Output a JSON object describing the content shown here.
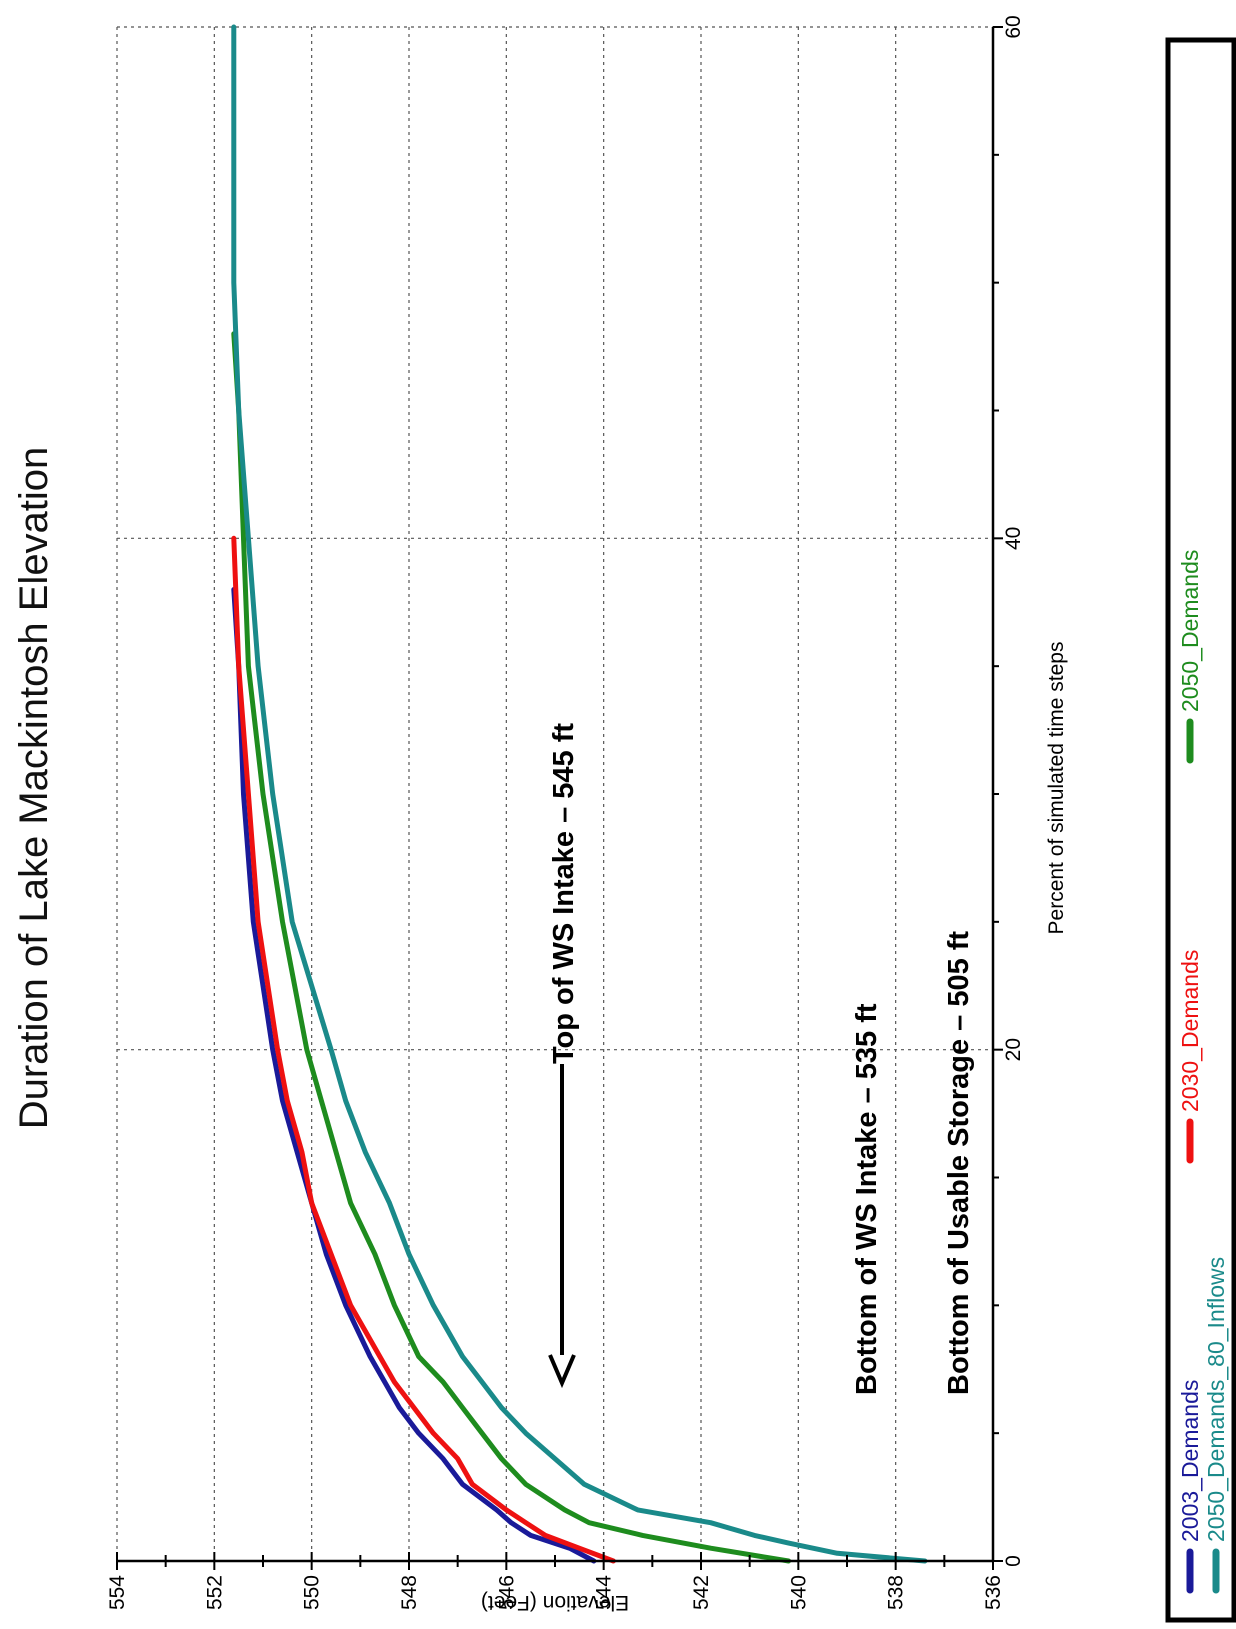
{
  "chart_data": {
    "type": "line",
    "title": "Duration of Lake Mackintosh Elevation",
    "xlabel": "Percent of simulated time steps",
    "ylabel": "Elevation (Feet)",
    "xlim": [
      0,
      60
    ],
    "ylim": [
      536,
      554
    ],
    "x_ticks": [
      "0",
      "20",
      "40",
      "60"
    ],
    "y_ticks": [
      "536",
      "538",
      "540",
      "542",
      "544",
      "546",
      "548",
      "550",
      "552",
      "554"
    ],
    "grid": true,
    "legend_position": "bottom",
    "annotations": [
      "Top of WS Intake – 545 ft",
      "Bottom of WS Intake – 535 ft",
      "Bottom of Usable Storage – 505 ft"
    ],
    "series": [
      {
        "name": "2003_Demands",
        "color": "#1a1a99",
        "x": [
          0,
          0.5,
          1,
          1.5,
          2,
          3,
          4,
          5,
          6,
          7,
          8,
          10,
          12,
          14,
          16,
          18,
          20,
          25,
          30,
          35,
          38
        ],
        "y": [
          544.2,
          544.7,
          545.5,
          545.9,
          546.2,
          546.9,
          547.3,
          547.8,
          548.2,
          548.5,
          548.8,
          549.3,
          549.7,
          550.0,
          550.3,
          550.6,
          550.8,
          551.2,
          551.4,
          551.5,
          551.6
        ]
      },
      {
        "name": "2030_Demands",
        "color": "#ee1111",
        "x": [
          0,
          0.5,
          1,
          1.5,
          2,
          3,
          4,
          5,
          6,
          7,
          8,
          10,
          12,
          14,
          16,
          18,
          20,
          25,
          30,
          35,
          40
        ],
        "y": [
          543.8,
          544.5,
          545.2,
          545.6,
          546.0,
          546.7,
          547.0,
          547.5,
          547.9,
          548.3,
          548.6,
          549.2,
          549.6,
          550.0,
          550.2,
          550.5,
          550.7,
          551.1,
          551.3,
          551.5,
          551.6
        ]
      },
      {
        "name": "2050_Demands",
        "color": "#1e8c1e",
        "x": [
          0,
          0.5,
          1,
          1.5,
          2,
          3,
          4,
          5,
          6,
          7,
          8,
          10,
          12,
          14,
          16,
          18,
          20,
          25,
          30,
          35,
          40,
          45,
          48
        ],
        "y": [
          540.2,
          541.8,
          543.2,
          544.3,
          544.8,
          545.6,
          546.1,
          546.5,
          546.9,
          547.3,
          547.8,
          548.3,
          548.7,
          549.2,
          549.5,
          549.8,
          550.1,
          550.6,
          551.0,
          551.3,
          551.4,
          551.5,
          551.6
        ]
      },
      {
        "name": "2050_Demands_80_Inflows",
        "color": "#1a8a8a",
        "x": [
          0,
          0.3,
          0.7,
          1,
          1.5,
          2,
          3,
          4,
          5,
          6,
          7,
          8,
          10,
          12,
          14,
          16,
          18,
          20,
          25,
          30,
          35,
          40,
          45,
          50,
          55,
          60
        ],
        "y": [
          537.4,
          539.2,
          540.2,
          540.9,
          541.8,
          543.3,
          544.4,
          545.0,
          545.6,
          546.1,
          546.5,
          546.9,
          547.5,
          548.0,
          548.4,
          548.9,
          549.3,
          549.6,
          550.4,
          550.8,
          551.1,
          551.3,
          551.5,
          551.6,
          551.6,
          551.6
        ]
      }
    ]
  }
}
